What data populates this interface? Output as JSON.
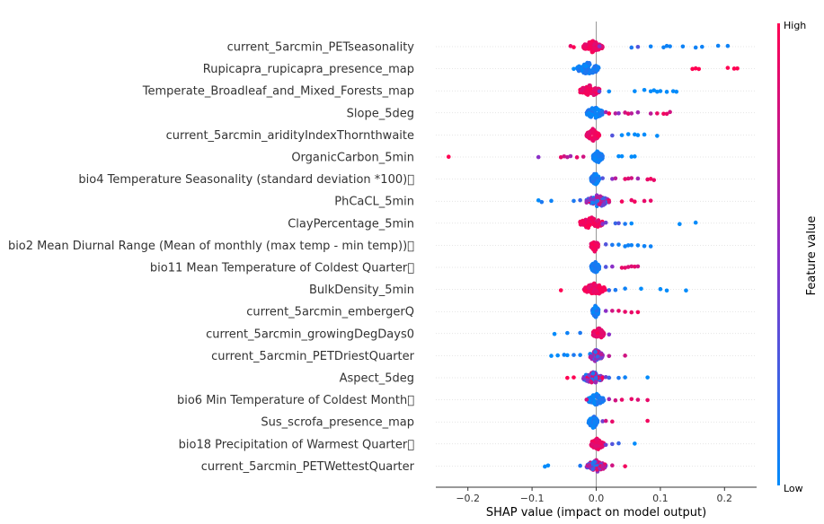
{
  "chart_data": {
    "type": "scatter",
    "subtype": "shap-beeswarm",
    "xlabel": "SHAP value (impact on model output)",
    "xlim": [
      -0.25,
      0.25
    ],
    "xticks": [
      -0.2,
      -0.1,
      0.0,
      0.1,
      0.2
    ],
    "xtick_labels": [
      "−0.2",
      "−0.1",
      "0.0",
      "0.1",
      "0.2"
    ],
    "colorbar": {
      "label": "Feature value",
      "high": "High",
      "low": "Low",
      "low_color": "#008bfb",
      "high_color": "#ff0052"
    },
    "features": [
      {
        "name": "current_5arcmin_PETseasonality",
        "core": [
          -0.02,
          0.01
        ],
        "main": "high",
        "points": [
          [
            -0.04,
            0.9
          ],
          [
            -0.035,
            1
          ],
          [
            0.005,
            0.5
          ],
          [
            0.055,
            0.1
          ],
          [
            0.065,
            0.3
          ],
          [
            0.085,
            0.05
          ],
          [
            0.105,
            0.05
          ],
          [
            0.11,
            0.05
          ],
          [
            0.115,
            0.05
          ],
          [
            0.135,
            0.05
          ],
          [
            0.155,
            0.05
          ],
          [
            0.165,
            0.05
          ],
          [
            0.19,
            0.05
          ],
          [
            0.205,
            0.05
          ]
        ]
      },
      {
        "name": "Rupicapra_rupicapra_presence_map",
        "core": [
          -0.03,
          0.005
        ],
        "main": "low",
        "points": [
          [
            -0.035,
            0
          ],
          [
            0.15,
            1
          ],
          [
            0.155,
            1
          ],
          [
            0.16,
            1
          ],
          [
            0.205,
            1
          ],
          [
            0.215,
            1
          ],
          [
            0.22,
            1
          ]
        ]
      },
      {
        "name": "Temperate_Broadleaf_and_Mixed_Forests_map",
        "core": [
          -0.025,
          0.005
        ],
        "main": "high",
        "points": [
          [
            0.005,
            0.4
          ],
          [
            0.02,
            0
          ],
          [
            0.06,
            0
          ],
          [
            0.075,
            0
          ],
          [
            0.085,
            0
          ],
          [
            0.09,
            0
          ],
          [
            0.095,
            0
          ],
          [
            0.1,
            0
          ],
          [
            0.11,
            0
          ],
          [
            0.12,
            0
          ],
          [
            0.125,
            0
          ]
        ]
      },
      {
        "name": "Slope_5deg",
        "core": [
          -0.015,
          0.01
        ],
        "main": "low",
        "points": [
          [
            0.015,
            0.6
          ],
          [
            0.02,
            1
          ],
          [
            0.03,
            0.7
          ],
          [
            0.035,
            0.5
          ],
          [
            0.045,
            0.8
          ],
          [
            0.05,
            0.9
          ],
          [
            0.055,
            0.7
          ],
          [
            0.065,
            0.6
          ],
          [
            0.085,
            0.7
          ],
          [
            0.095,
            0.9
          ],
          [
            0.105,
            0.95
          ],
          [
            0.11,
            0.9
          ],
          [
            0.115,
            0.8
          ]
        ]
      },
      {
        "name": "current_5arcmin_aridityIndexThornthwaite",
        "core": [
          -0.015,
          0.005
        ],
        "main": "high",
        "points": [
          [
            0.025,
            0.3
          ],
          [
            0.04,
            0
          ],
          [
            0.05,
            0
          ],
          [
            0.06,
            0
          ],
          [
            0.065,
            0
          ],
          [
            0.075,
            0
          ],
          [
            0.095,
            0
          ]
        ]
      },
      {
        "name": "OrganicCarbon_5min",
        "core": [
          -0.005,
          0.01
        ],
        "main": "low",
        "points": [
          [
            -0.23,
            1
          ],
          [
            -0.09,
            0.5
          ],
          [
            -0.055,
            0.9
          ],
          [
            -0.05,
            0.8
          ],
          [
            -0.045,
            0.7
          ],
          [
            -0.04,
            0.6
          ],
          [
            -0.03,
            0.9
          ],
          [
            -0.02,
            0.8
          ],
          [
            0.035,
            0
          ],
          [
            0.04,
            0
          ],
          [
            0.055,
            0
          ],
          [
            0.06,
            0
          ]
        ]
      },
      {
        "name": "bio4 Temperature Seasonality (standard deviation *100)\u0000",
        "core": [
          -0.008,
          0.005
        ],
        "main": "low",
        "points": [
          [
            0.01,
            0.3
          ],
          [
            0.025,
            0.5
          ],
          [
            0.03,
            0.7
          ],
          [
            0.045,
            0.9
          ],
          [
            0.05,
            0.85
          ],
          [
            0.055,
            0.8
          ],
          [
            0.065,
            0.6
          ],
          [
            0.08,
            0.9
          ],
          [
            0.085,
            0.95
          ],
          [
            0.09,
            0.9
          ]
        ]
      },
      {
        "name": "PhCaCL_5min",
        "core": [
          -0.015,
          0.02
        ],
        "main": "mixed",
        "points": [
          [
            -0.09,
            0
          ],
          [
            -0.085,
            0.1
          ],
          [
            -0.07,
            0.05
          ],
          [
            -0.035,
            0.1
          ],
          [
            -0.025,
            0.2
          ],
          [
            0.02,
            0.8
          ],
          [
            0.04,
            0.95
          ],
          [
            0.055,
            0.9
          ],
          [
            0.06,
            0.95
          ],
          [
            0.075,
            0.9
          ],
          [
            0.085,
            0.9
          ]
        ]
      },
      {
        "name": "ClayPercentage_5min",
        "core": [
          -0.025,
          0.01
        ],
        "main": "high",
        "points": [
          [
            0.01,
            0.5
          ],
          [
            0.015,
            0.4
          ],
          [
            0.03,
            0.2
          ],
          [
            0.035,
            0.3
          ],
          [
            0.045,
            0.1
          ],
          [
            0.055,
            0
          ],
          [
            0.13,
            0
          ],
          [
            0.155,
            0
          ]
        ]
      },
      {
        "name": "bio2 Mean Diurnal Range (Mean of monthly (max temp - min temp))\u0000",
        "core": [
          -0.008,
          0.003
        ],
        "main": "high",
        "points": [
          [
            0.015,
            0.3
          ],
          [
            0.025,
            0.1
          ],
          [
            0.035,
            0.05
          ],
          [
            0.045,
            0.05
          ],
          [
            0.05,
            0.05
          ],
          [
            0.055,
            0.05
          ],
          [
            0.065,
            0.05
          ],
          [
            0.075,
            0.05
          ],
          [
            0.085,
            0.05
          ]
        ]
      },
      {
        "name": "bio11 Mean Temperature of Coldest Quarter\u0000",
        "core": [
          -0.008,
          0.005
        ],
        "main": "low",
        "points": [
          [
            0.015,
            0.3
          ],
          [
            0.025,
            0.5
          ],
          [
            0.04,
            0.9
          ],
          [
            0.045,
            0.9
          ],
          [
            0.05,
            0.85
          ],
          [
            0.055,
            0.85
          ],
          [
            0.06,
            0.9
          ],
          [
            0.065,
            0.8
          ]
        ]
      },
      {
        "name": "BulkDensity_5min",
        "core": [
          -0.02,
          0.015
        ],
        "main": "high",
        "points": [
          [
            -0.055,
            1
          ],
          [
            0.02,
            0.2
          ],
          [
            0.03,
            0.1
          ],
          [
            0.045,
            0.05
          ],
          [
            0.07,
            0
          ],
          [
            0.1,
            0
          ],
          [
            0.11,
            0
          ],
          [
            0.14,
            0
          ]
        ]
      },
      {
        "name": "current_5arcmin_embergerQ",
        "core": [
          -0.006,
          0.004
        ],
        "main": "low",
        "points": [
          [
            0.015,
            0.5
          ],
          [
            0.025,
            0.8
          ],
          [
            0.035,
            0.9
          ],
          [
            0.045,
            0.9
          ],
          [
            0.055,
            0.9
          ],
          [
            0.065,
            0.95
          ]
        ]
      },
      {
        "name": "current_5arcmin_growingDegDays0",
        "core": [
          -0.005,
          0.012
        ],
        "main": "high",
        "points": [
          [
            -0.065,
            0
          ],
          [
            -0.045,
            0.05
          ],
          [
            -0.025,
            0.1
          ],
          [
            0.02,
            0.5
          ]
        ]
      },
      {
        "name": "current_5arcmin_PETDriestQuarter",
        "core": [
          -0.01,
          0.01
        ],
        "main": "mixed",
        "points": [
          [
            -0.07,
            0
          ],
          [
            -0.06,
            0
          ],
          [
            -0.05,
            0.05
          ],
          [
            -0.045,
            0
          ],
          [
            -0.035,
            0.1
          ],
          [
            -0.025,
            0.05
          ],
          [
            0.02,
            0.7
          ],
          [
            0.045,
            0.8
          ]
        ]
      },
      {
        "name": "Aspect_5deg",
        "core": [
          -0.02,
          0.01
        ],
        "main": "mixed",
        "points": [
          [
            -0.045,
            1
          ],
          [
            -0.035,
            1
          ],
          [
            0.015,
            0.4
          ],
          [
            0.02,
            0.2
          ],
          [
            0.035,
            0.1
          ],
          [
            0.045,
            0.05
          ],
          [
            0.08,
            0
          ]
        ]
      },
      {
        "name": "bio6 Min Temperature of Coldest Month\u0000",
        "core": [
          -0.012,
          0.012
        ],
        "main": "low",
        "points": [
          [
            -0.015,
            0.8
          ],
          [
            0.02,
            0.6
          ],
          [
            0.03,
            0.8
          ],
          [
            0.04,
            0.9
          ],
          [
            0.055,
            0.9
          ],
          [
            0.065,
            0.85
          ],
          [
            0.08,
            0.9
          ]
        ]
      },
      {
        "name": "Sus_scrofa_presence_map",
        "core": [
          -0.012,
          0.003
        ],
        "main": "low",
        "points": [
          [
            0.01,
            0.4
          ],
          [
            0.015,
            0.8
          ],
          [
            0.025,
            0.9
          ],
          [
            0.08,
            0.95
          ]
        ]
      },
      {
        "name": "bio18 Precipitation of Warmest Quarter\u0000",
        "core": [
          -0.008,
          0.012
        ],
        "main": "high",
        "points": [
          [
            0.015,
            0.4
          ],
          [
            0.025,
            0.3
          ],
          [
            0.035,
            0.2
          ],
          [
            0.06,
            0
          ]
        ]
      },
      {
        "name": "current_5arcmin_PETWettestQuarter",
        "core": [
          -0.015,
          0.015
        ],
        "main": "mixed",
        "points": [
          [
            -0.08,
            0
          ],
          [
            -0.075,
            0
          ],
          [
            -0.025,
            0.1
          ],
          [
            0.01,
            0.7
          ],
          [
            0.025,
            0.8
          ],
          [
            0.045,
            0.95
          ]
        ]
      }
    ]
  }
}
